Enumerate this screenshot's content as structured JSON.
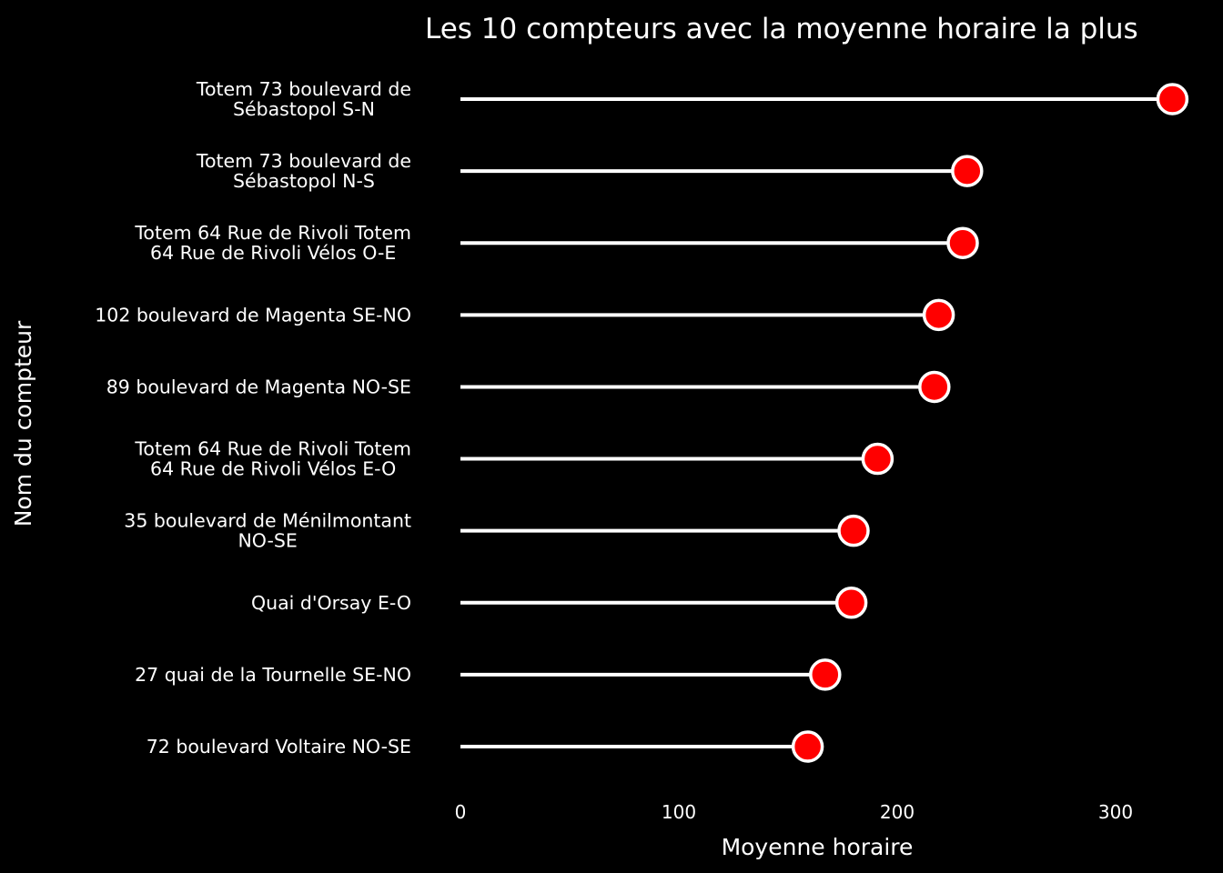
{
  "chart_data": {
    "type": "lollipop",
    "title": "Les 10 compteurs avec la moyenne horaire la plus",
    "xlabel": "Moyenne horaire",
    "ylabel": "Nom du compteur",
    "xlim": [
      0,
      340
    ],
    "xticks": [
      0,
      100,
      200,
      300
    ],
    "grid": false,
    "categories": [
      [
        "Totem 73 boulevard de",
        "Sébastopol S-N"
      ],
      [
        "Totem 73 boulevard de",
        "Sébastopol N-S"
      ],
      [
        "Totem 64 Rue de Rivoli Totem",
        "64 Rue de Rivoli Vélos O-E"
      ],
      [
        "102 boulevard de Magenta SE-NO"
      ],
      [
        "89 boulevard de Magenta NO-SE"
      ],
      [
        "Totem 64 Rue de Rivoli Totem",
        "64 Rue de Rivoli Vélos E-O"
      ],
      [
        "35 boulevard de Ménilmontant",
        "NO-SE"
      ],
      [
        "Quai d'Orsay E-O"
      ],
      [
        "27 quai de la Tournelle SE-NO"
      ],
      [
        "72 boulevard Voltaire NO-SE"
      ]
    ],
    "values": [
      326,
      232,
      230,
      219,
      217,
      191,
      180,
      179,
      167,
      159
    ],
    "colors": {
      "background": "#000000",
      "stem": "#ffffff",
      "marker_fill": "#ff0000",
      "marker_edge": "#ffffff",
      "text": "#ffffff"
    }
  }
}
